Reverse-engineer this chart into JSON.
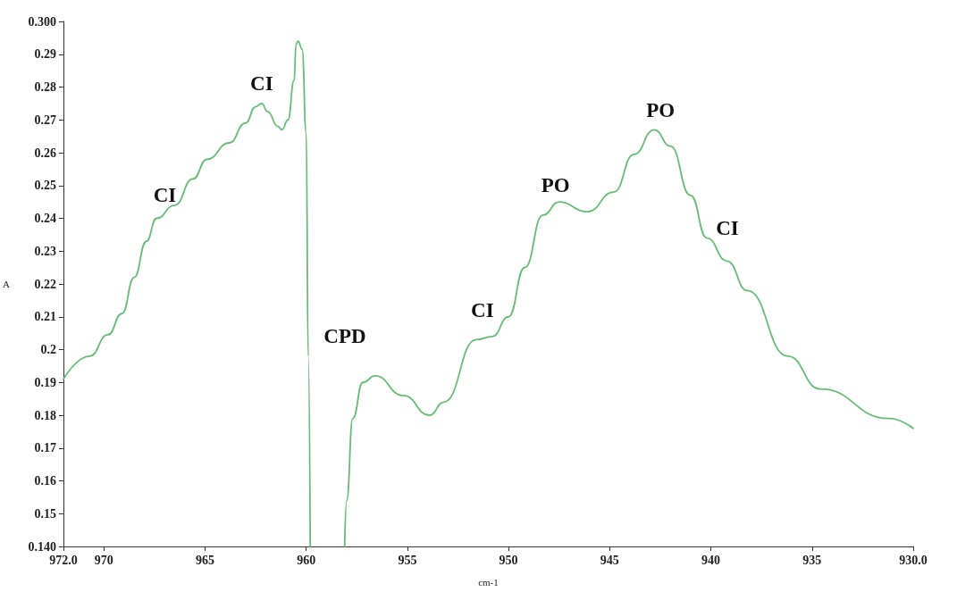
{
  "chart_data": {
    "type": "line",
    "xlabel": "cm-1",
    "ylabel": "A",
    "xlim": [
      972,
      930
    ],
    "xticks": [
      {
        "value": 972,
        "label": "972.0"
      },
      970,
      965,
      960,
      955,
      950,
      945,
      940,
      935,
      {
        "value": 930,
        "label": "930.0"
      }
    ],
    "ylim": [
      0.14,
      0.3
    ],
    "yticks": [
      {
        "value": 0.14,
        "label": "0.140"
      },
      0.15,
      0.16,
      0.17,
      0.18,
      0.19,
      0.2,
      0.21,
      0.22,
      0.23,
      0.24,
      0.25,
      0.26,
      0.27,
      0.28,
      0.29,
      {
        "value": 0.3,
        "label": "0.300"
      }
    ],
    "grid": false,
    "marker": "none",
    "line_style": "solid",
    "series": [
      {
        "color": "#66bb77",
        "x": [
          972.0,
          970.7,
          969.8,
          969.1,
          968.5,
          967.9,
          967.4,
          966.5,
          965.6,
          964.9,
          963.8,
          963.0,
          962.5,
          962.2,
          961.9,
          961.4,
          961.2,
          960.9,
          960.6,
          960.5,
          960.4,
          960.2,
          960.0,
          959.9,
          959.8,
          959.0,
          958.1,
          958.0,
          957.7,
          957.2,
          956.6,
          955.2,
          953.9,
          953.2,
          951.6,
          950.8,
          950.0,
          949.2,
          948.3,
          947.5,
          946.1,
          944.8,
          943.8,
          942.8,
          942.0,
          941.0,
          940.2,
          939.2,
          938.2,
          936.2,
          934.6,
          931.2,
          930.0
        ],
        "values": [
          0.191,
          0.198,
          0.2045,
          0.211,
          0.222,
          0.233,
          0.24,
          0.244,
          0.252,
          0.258,
          0.263,
          0.269,
          0.274,
          0.275,
          0.2725,
          0.268,
          0.267,
          0.27,
          0.282,
          0.293,
          0.294,
          0.2915,
          0.266,
          0.198,
          0.14,
          null,
          0.14,
          0.154,
          0.179,
          0.19,
          0.192,
          0.186,
          0.18,
          0.184,
          0.203,
          0.204,
          0.21,
          0.225,
          0.241,
          0.245,
          0.242,
          0.248,
          0.2595,
          0.267,
          0.262,
          0.247,
          0.234,
          0.227,
          0.218,
          0.198,
          0.188,
          0.179,
          0.176
        ]
      }
    ],
    "annotations": [
      {
        "text": "CI",
        "x": 966.5,
        "y": 0.244
      },
      {
        "text": "CI",
        "x": 962.2,
        "y": 0.275
      },
      {
        "text": "CPD",
        "x": 959.9,
        "y": 0.198
      },
      {
        "text": "CI",
        "x": 951.6,
        "y": 0.203
      },
      {
        "text": "PO",
        "x": 948.3,
        "y": 0.241
      },
      {
        "text": "PO",
        "x": 942.8,
        "y": 0.267
      },
      {
        "text": "CI",
        "x": 940.2,
        "y": 0.234
      }
    ]
  }
}
